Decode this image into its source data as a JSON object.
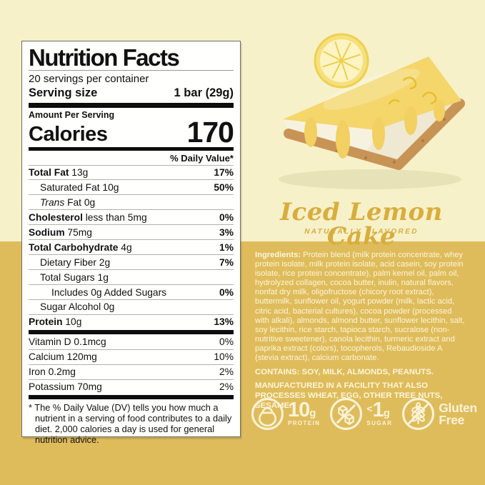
{
  "colors": {
    "cream_background": "#f7f1ca",
    "gold_background": "#dfbc5b",
    "title_gold": "#d9ad3c",
    "cream_text": "#fcf6da",
    "label_black": "#111111"
  },
  "nutrition_label": {
    "title": "Nutrition Facts",
    "servings_per_container": "20 servings per container",
    "serving_size_label": "Serving size",
    "serving_size_value": "1 bar (29g)",
    "amount_per_serving": "Amount Per Serving",
    "calories_label": "Calories",
    "calories_value": "170",
    "daily_value_header": "% Daily Value*",
    "rows": [
      {
        "b": "Total Fat",
        "t": " 13g",
        "dv": "17%",
        "ind": 0,
        "dvb": true
      },
      {
        "t": "Saturated Fat 10g",
        "dv": "50%",
        "ind": 1,
        "dvb": true
      },
      {
        "i": "Trans",
        "t": " Fat 0g",
        "dv": "",
        "ind": 1,
        "dvb": false
      },
      {
        "b": "Cholesterol",
        "t": " less than 5mg",
        "dv": "0%",
        "ind": 0,
        "dvb": true
      },
      {
        "b": "Sodium",
        "t": " 75mg",
        "dv": "3%",
        "ind": 0,
        "dvb": true
      },
      {
        "b": "Total Carbohydrate",
        "t": " 4g",
        "dv": "1%",
        "ind": 0,
        "dvb": true
      },
      {
        "t": "Dietary Fiber 2g",
        "dv": "7%",
        "ind": 1,
        "dvb": true
      },
      {
        "t": "Total Sugars 1g",
        "dv": "",
        "ind": 1,
        "dvb": false
      },
      {
        "t": "Includes 0g Added Sugars",
        "dv": "0%",
        "ind": 2,
        "dvb": true
      },
      {
        "t": "Sugar Alcohol 0g",
        "dv": "",
        "ind": 1,
        "dvb": false
      },
      {
        "b": "Protein",
        "t": " 10g",
        "dv": "13%",
        "ind": 0,
        "dvb": true,
        "thick_after": true
      },
      {
        "t": "Vitamin D 0.1mcg",
        "dv": "0%",
        "ind": 0,
        "dvb": false
      },
      {
        "t": "Calcium 120mg",
        "dv": "10%",
        "ind": 0,
        "dvb": false
      },
      {
        "t": "Iron 0.2mg",
        "dv": "2%",
        "ind": 0,
        "dvb": false
      },
      {
        "t": "Potassium 70mg",
        "dv": "2%",
        "ind": 0,
        "dvb": false,
        "thick_after": true
      }
    ],
    "footnote": "* The % Daily Value (DV) tells you how much a nutrient in a serving of food contributes to a daily diet. 2,000 calories a day is used for general nutrition advice."
  },
  "product": {
    "name": "Iced Lemon Cake",
    "flavor_note": "NATURALLY FLAVORED",
    "ingredients_label": "Ingredients:",
    "ingredients_text": " Protein blend (milk protein concentrate, whey protein isolate, milk protein isolate, acid casein, soy protein isolate, rice protein concentrate), palm kernel oil, palm oil, hydrolyzed collagen, cocoa butter, inulin, natural flavors, nonfat dry milk, oligofructose (chicory root extract), buttermilk, sunflower oil, yogurt powder (milk, lactic acid, citric acid, bacterial cultures), cocoa powder (processed with alkali), almonds, almond butter, sunflower lecithin, salt, soy lecithin, rice starch, tapioca starch, sucralose (non- nutritive sweetener), canola lecithin, turmeric extract and paprika extract (colors), tocopherols, Rebaudioside A (stevia extract), calcium carbonate.",
    "contains": "CONTAINS: SOY, MILK, ALMONDS, PEANUTS.",
    "facility": "MANUFACTURED IN A FACILITY THAT ALSO PROCESSES WHEAT, EGG, OTHER TREE NUTS, SESAME."
  },
  "badges": [
    {
      "icon": "kettlebell-icon",
      "big": "10",
      "small": "g",
      "label": "PROTEIN"
    },
    {
      "icon": "no-sugar-icon",
      "prefix": "<",
      "big": "1",
      "small": "g",
      "label": "SUGAR"
    },
    {
      "icon": "gluten-free-icon",
      "line1": "Gluten",
      "line2": "Free"
    }
  ]
}
